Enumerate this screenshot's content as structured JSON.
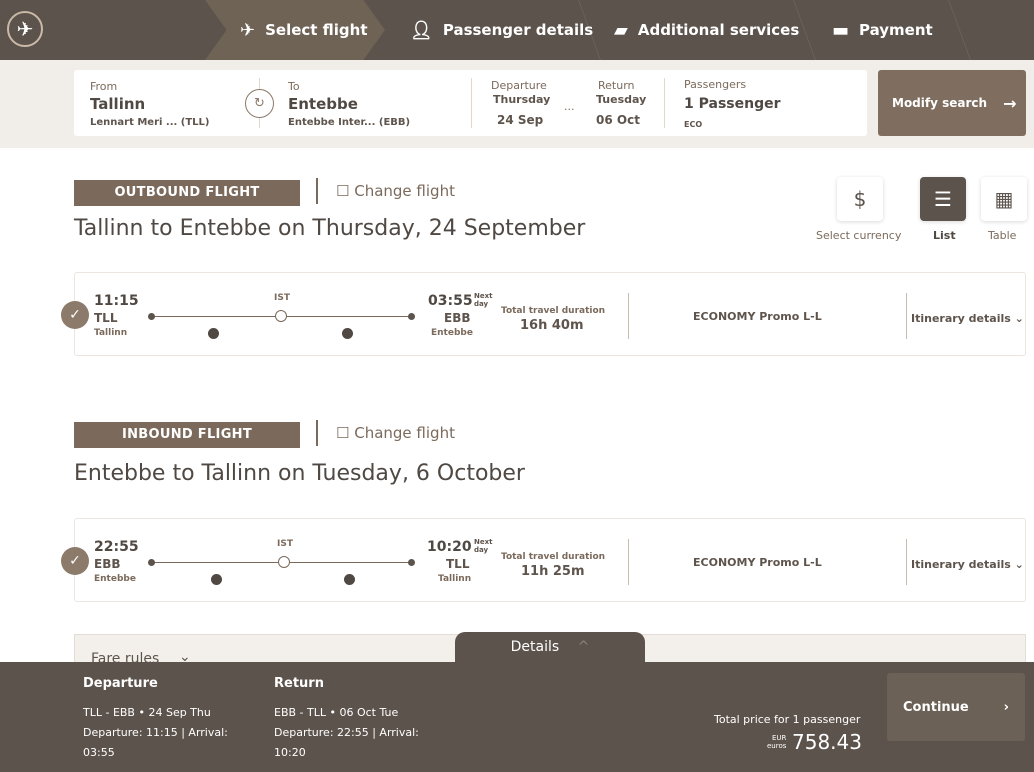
{
  "header": {
    "logo_icon": "turkish-airlines-logo",
    "steps": [
      {
        "label": "Select flight",
        "icon": "plane-icon",
        "active": true
      },
      {
        "label": "Passenger details",
        "icon": "person-icon"
      },
      {
        "label": "Additional services",
        "icon": "ticket-icon"
      },
      {
        "label": "Payment",
        "icon": "card-icon"
      }
    ]
  },
  "search": {
    "from_label": "From",
    "from_city": "Tallinn",
    "from_airport": "Lennart Meri ...  (TLL)",
    "to_label": "To",
    "to_city": "Entebbe",
    "to_airport": "Entebbe Inter... (EBB)",
    "dep_label": "Departure",
    "dep_day": "Thursday",
    "dep_date": "24 Sep",
    "sep": "...",
    "ret_label": "Return",
    "ret_day": "Tuesday",
    "ret_date": "06 Oct",
    "pax_label": "Passengers",
    "pax_value": "1 Passenger",
    "cabin": "ECO",
    "modify": "Modify search"
  },
  "view": {
    "currency": "Select currency",
    "list": "List",
    "table": "Table"
  },
  "outbound": {
    "tag": "OUTBOUND FLIGHT",
    "change": "Change flight",
    "title": "Tallinn to Entebbe on Thursday, 24 September",
    "dep_time": "11:15",
    "dep_code": "TLL",
    "dep_city": "Tallinn",
    "stop": "IST",
    "arr_time": "03:55",
    "next_day": "Next day",
    "arr_code": "EBB",
    "arr_city": "Entebbe",
    "dur_label": "Total travel duration",
    "duration": "16h 40m",
    "fare": "ECONOMY Promo L-L",
    "itin": "Itinerary details"
  },
  "inbound": {
    "tag": "INBOUND FLIGHT",
    "change": "Change flight",
    "title": "Entebbe to Tallinn on Tuesday, 6 October",
    "dep_time": "22:55",
    "dep_code": "EBB",
    "dep_city": "Entebbe",
    "stop": "IST",
    "arr_time": "10:20",
    "next_day": "Next day",
    "arr_code": "TLL",
    "arr_city": "Tallinn",
    "dur_label": "Total travel duration",
    "duration": "11h 25m",
    "fare": "ECONOMY Promo L-L",
    "itin": "Itinerary details"
  },
  "fare_rules": "Fare rules",
  "footer": {
    "details": "Details",
    "dep_h": "Departure",
    "dep_l1": "TLL  -  EBB  •  24 Sep Thu",
    "dep_l2": "Departure: 11:15 | Arrival: 03:55",
    "ret_h": "Return",
    "ret_l1": "EBB  -  TLL  •  06 Oct Tue",
    "ret_l2": "Departure: 22:55 | Arrival: 10:20",
    "total_label": "Total price for 1 passenger",
    "cur": "EUR",
    "cur2": "euros",
    "price": "758.43",
    "continue": "Continue"
  },
  "colors": {
    "header": "#5b534c",
    "accent": "#7b6a5c",
    "button": "#7f6e5f"
  }
}
